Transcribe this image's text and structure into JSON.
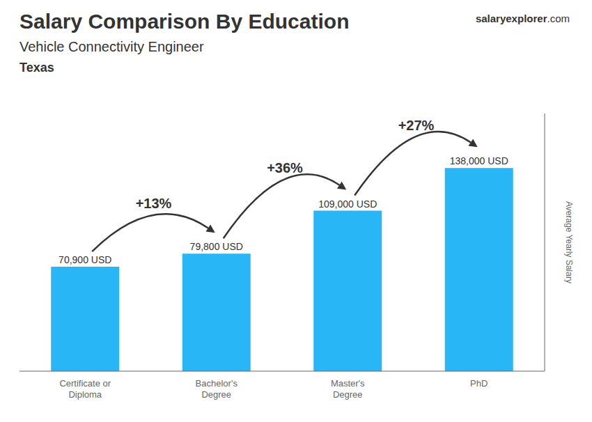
{
  "chart_data": {
    "type": "bar",
    "title": "Salary Comparison By Education",
    "subtitle": "Vehicle Connectivity Engineer",
    "ylabel": "Average Yearly Salary",
    "categories": [
      "Certificate or\nDiploma",
      "Bachelor's\nDegree",
      "Master's\nDegree",
      "PhD"
    ],
    "values": [
      70900,
      79800,
      109000,
      138000
    ],
    "value_labels": [
      "70,900 USD",
      "79,800 USD",
      "109,000 USD",
      "138,000 USD"
    ],
    "data_labels": true,
    "color": "#29b6f6",
    "ylim": [
      0,
      175000
    ],
    "yticks": [],
    "tick_labels": "x",
    "grid": false,
    "annotations": [
      {
        "text": "Texas"
      },
      {
        "text": "salary"
      },
      {
        "text": "explorer"
      },
      {
        "text": ".com"
      },
      {
        "text": "+13%",
        "from": 0,
        "to": 1
      },
      {
        "text": "+36%",
        "from": 1,
        "to": 2
      },
      {
        "text": "+27%",
        "from": 2,
        "to": 3
      }
    ]
  }
}
